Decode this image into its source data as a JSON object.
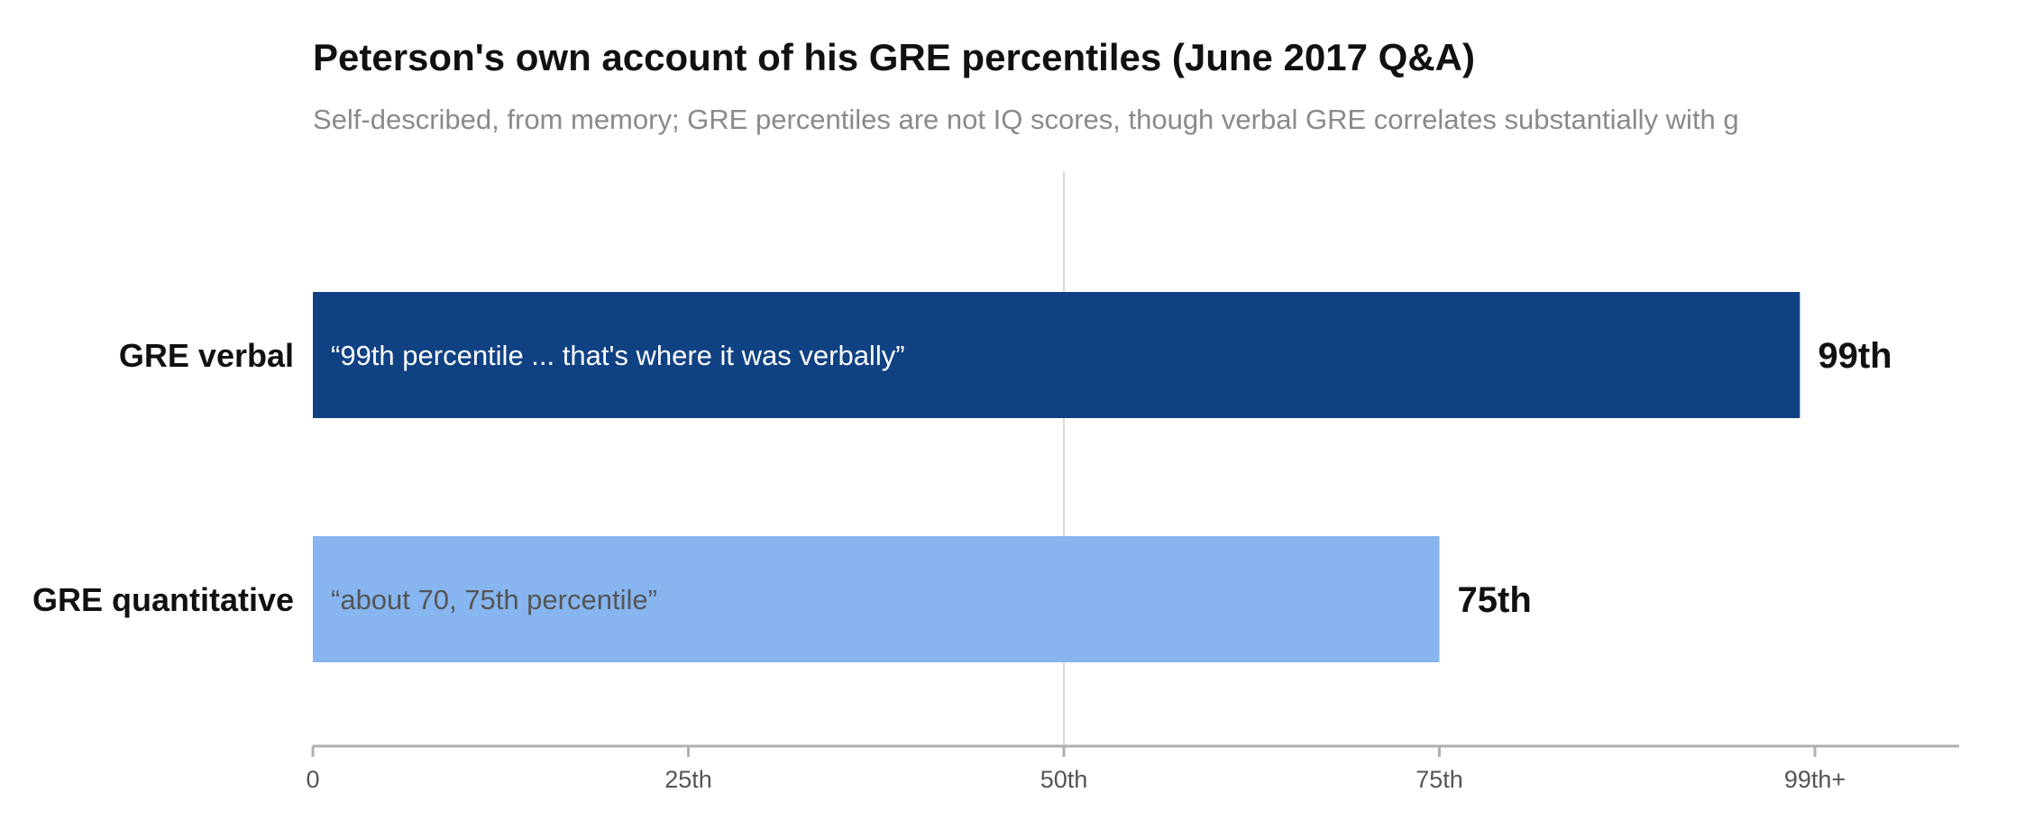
{
  "chart_data": {
    "type": "bar",
    "orientation": "horizontal",
    "title": "Peterson's own account of his GRE percentiles (June 2017 Q&A)",
    "subtitle": "Self-described, from memory; GRE percentiles are not IQ scores, though verbal GRE correlates substantially with g",
    "categories": [
      "GRE verbal",
      "GRE quantitative"
    ],
    "values": [
      99,
      75
    ],
    "value_labels": [
      "99th",
      "75th"
    ],
    "quotes": [
      "“99th percentile ... that's where it was verbally”",
      "“about 70, 75th percentile”"
    ],
    "bar_colors": [
      "#104283",
      "#86b5ef"
    ],
    "quote_colors": [
      "#ffffff",
      "#555555"
    ],
    "xlim": [
      0,
      112
    ],
    "xticks": [
      {
        "value": 0,
        "label": "0"
      },
      {
        "value": 25,
        "label": "25th"
      },
      {
        "value": 50,
        "label": "50th"
      },
      {
        "value": 75,
        "label": "75th"
      },
      {
        "value": 100,
        "label": "99th+"
      }
    ],
    "reference_line": 50,
    "grid": false,
    "legend": "none"
  }
}
